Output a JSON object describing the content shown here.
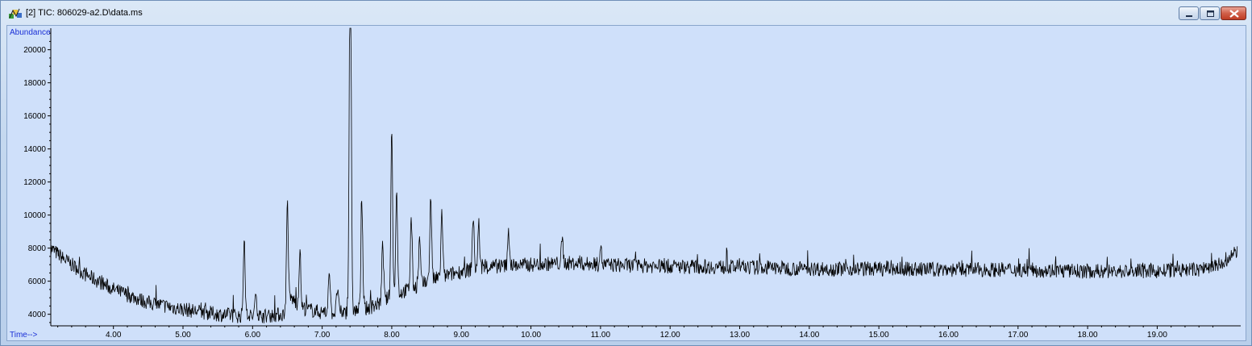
{
  "window": {
    "title": "[2] TIC: 806029-a2.D\\data.ms",
    "controls": [
      "minimize",
      "maximize",
      "close"
    ]
  },
  "colors": {
    "plot_bg": "#cfe0fa",
    "trace": "#000000",
    "axis_label": "#1a2fd6"
  },
  "chart_data": {
    "type": "line",
    "ylabel": "Abundance",
    "xlabel": "Time-->",
    "xlim": [
      3.1,
      20.2
    ],
    "ylim": [
      3300,
      21300
    ],
    "x_ticks": [
      4.0,
      5.0,
      6.0,
      7.0,
      8.0,
      9.0,
      10.0,
      11.0,
      12.0,
      13.0,
      14.0,
      15.0,
      16.0,
      17.0,
      18.0,
      19.0
    ],
    "x_tick_labels": [
      "4.00",
      "5.00",
      "6.00",
      "7.00",
      "8.00",
      "9.00",
      "10.00",
      "11.00",
      "12.00",
      "13.00",
      "14.00",
      "15.00",
      "16.00",
      "17.00",
      "18.00",
      "19.00"
    ],
    "y_ticks": [
      4000,
      6000,
      8000,
      10000,
      12000,
      14000,
      16000,
      18000,
      20000
    ],
    "y_tick_labels": [
      "4000",
      "6000",
      "8000",
      "10000",
      "12000",
      "14000",
      "16000",
      "18000",
      "20000"
    ],
    "grid": false,
    "series": [
      {
        "x": [
          3.1,
          3.3,
          3.6,
          4.0,
          4.5,
          5.0,
          5.5,
          5.8,
          6.2,
          6.45,
          6.55,
          6.7,
          7.0,
          7.3,
          7.6,
          7.8,
          8.0,
          8.3,
          8.6,
          9.0,
          9.5,
          10.0,
          10.5,
          11.0,
          12.0,
          13.0,
          14.0,
          15.0,
          16.0,
          17.0,
          18.0,
          19.0,
          19.6,
          20.0,
          20.15
        ],
        "y": [
          8000,
          7300,
          6400,
          5500,
          4700,
          4300,
          4000,
          3900,
          3900,
          4000,
          5000,
          4400,
          4100,
          4100,
          4300,
          4600,
          5100,
          5600,
          6100,
          6600,
          6900,
          7000,
          7100,
          7000,
          6900,
          6850,
          6750,
          6750,
          6700,
          6700,
          6600,
          6600,
          6700,
          7100,
          7900
        ]
      }
    ],
    "peaks": [
      {
        "x": 5.88,
        "y": 8600
      },
      {
        "x": 6.05,
        "y": 5300
      },
      {
        "x": 6.5,
        "y": 10800
      },
      {
        "x": 6.68,
        "y": 7800
      },
      {
        "x": 7.1,
        "y": 6800
      },
      {
        "x": 7.22,
        "y": 5600
      },
      {
        "x": 7.4,
        "y": 21200
      },
      {
        "x": 7.41,
        "y": 14000
      },
      {
        "x": 7.57,
        "y": 10900
      },
      {
        "x": 7.87,
        "y": 8200
      },
      {
        "x": 8.0,
        "y": 15300
      },
      {
        "x": 8.07,
        "y": 11400
      },
      {
        "x": 8.28,
        "y": 9900
      },
      {
        "x": 8.4,
        "y": 8500
      },
      {
        "x": 8.56,
        "y": 11100
      },
      {
        "x": 8.72,
        "y": 10100
      },
      {
        "x": 9.17,
        "y": 9900
      },
      {
        "x": 9.25,
        "y": 9500
      },
      {
        "x": 9.68,
        "y": 9000
      },
      {
        "x": 10.45,
        "y": 8500
      },
      {
        "x": 11.0,
        "y": 8200
      }
    ]
  }
}
